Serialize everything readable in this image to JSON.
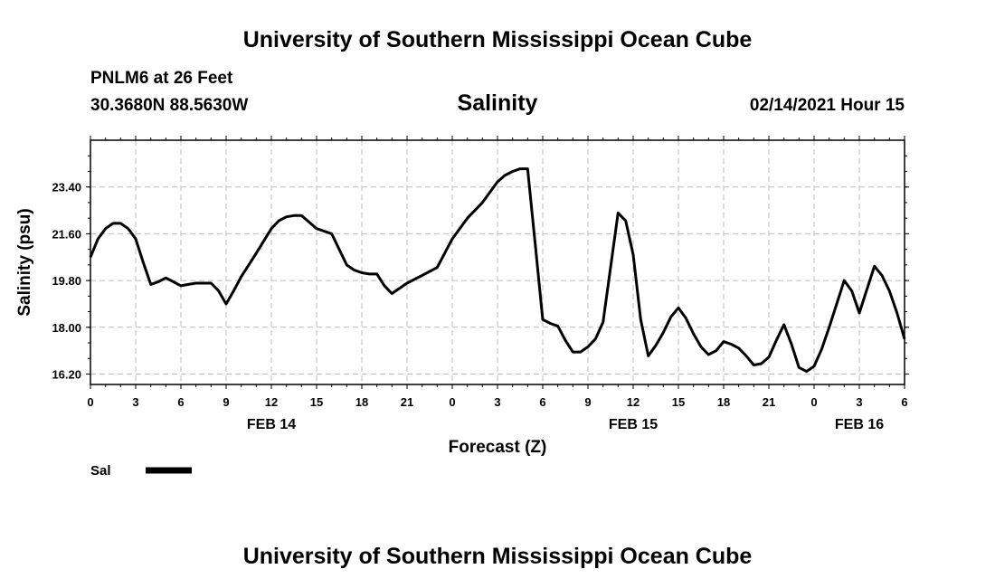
{
  "header": {
    "title": "University of Southern Mississippi Ocean Cube",
    "station": "PNLM6 at 26 Feet",
    "coords": "30.3680N 88.5630W",
    "variable": "Salinity",
    "datetime": "02/14/2021 Hour 15"
  },
  "footer": {
    "title": "University of Southern Mississippi Ocean Cube"
  },
  "legend": {
    "label": "Sal",
    "color": "#000000"
  },
  "chart_data": {
    "type": "line",
    "title": "Salinity",
    "xlabel": "Forecast (Z)",
    "ylabel": "Salinity (psu)",
    "grid": true,
    "xlim": [
      0,
      54
    ],
    "ylim": [
      15.8,
      25.2
    ],
    "yticks": [
      16.2,
      18.0,
      19.8,
      21.6,
      23.4
    ],
    "ytick_labels": [
      "16.20",
      "18.00",
      "19.80",
      "21.60",
      "23.40"
    ],
    "xticks": [
      0,
      3,
      6,
      9,
      12,
      15,
      18,
      21,
      24,
      27,
      30,
      33,
      36,
      39,
      42,
      45,
      48,
      51,
      54
    ],
    "xtick_labels": [
      "0",
      "3",
      "6",
      "9",
      "12",
      "15",
      "18",
      "21",
      "0",
      "3",
      "6",
      "9",
      "12",
      "15",
      "18",
      "21",
      "0",
      "3",
      "6"
    ],
    "date_labels": [
      {
        "x": 12,
        "label": "FEB 14"
      },
      {
        "x": 36,
        "label": "FEB 15"
      },
      {
        "x": 51,
        "label": "FEB 16"
      }
    ],
    "series": [
      {
        "name": "Sal",
        "color": "#000000",
        "x": [
          0,
          0.5,
          1,
          1.5,
          2,
          2.5,
          3,
          3.5,
          4,
          4.5,
          5,
          5.5,
          6,
          6.5,
          7,
          7.5,
          8,
          8.5,
          9,
          9.5,
          10,
          11,
          12,
          12.5,
          13,
          13.5,
          14,
          14.5,
          15,
          15.5,
          16,
          16.5,
          17,
          17.5,
          18,
          18.5,
          19,
          19.5,
          20,
          21,
          22,
          23,
          24,
          25,
          26,
          27,
          27.5,
          28,
          28.5,
          29,
          29.5,
          30,
          30.5,
          31,
          31.5,
          32,
          32.5,
          33,
          33.5,
          34,
          34.5,
          35,
          35.5,
          36,
          36.5,
          37,
          37.5,
          38,
          38.5,
          39,
          39.5,
          40,
          40.5,
          41,
          41.5,
          42,
          42.5,
          43,
          43.5,
          44,
          44.5,
          45,
          45.5,
          46,
          46.5,
          47,
          47.5,
          48,
          48.5,
          49,
          49.5,
          50,
          50.5,
          51,
          51.5,
          52,
          52.5,
          53,
          53.5,
          54
        ],
        "values": [
          20.7,
          21.4,
          21.8,
          22.0,
          22.0,
          21.8,
          21.4,
          20.5,
          19.65,
          19.75,
          19.9,
          19.75,
          19.6,
          19.65,
          19.7,
          19.7,
          19.7,
          19.4,
          18.9,
          19.4,
          19.95,
          20.85,
          21.8,
          22.1,
          22.25,
          22.3,
          22.3,
          22.05,
          21.8,
          21.7,
          21.6,
          21.0,
          20.4,
          20.2,
          20.1,
          20.05,
          20.05,
          19.6,
          19.3,
          19.7,
          20.0,
          20.3,
          21.4,
          22.2,
          22.8,
          23.6,
          23.85,
          24.0,
          24.1,
          24.1,
          21.2,
          18.3,
          18.15,
          18.05,
          17.5,
          17.05,
          17.05,
          17.25,
          17.55,
          18.2,
          20.3,
          22.4,
          22.1,
          20.8,
          18.3,
          16.9,
          17.3,
          17.8,
          18.4,
          18.75,
          18.35,
          17.75,
          17.25,
          16.95,
          17.1,
          17.45,
          17.35,
          17.2,
          16.9,
          16.55,
          16.6,
          16.85,
          17.5,
          18.1,
          17.35,
          16.45,
          16.3,
          16.5,
          17.15,
          18.0,
          18.9,
          19.8,
          19.4,
          18.55,
          19.45,
          20.35,
          20.0,
          19.4,
          18.55,
          17.55
        ]
      }
    ]
  }
}
